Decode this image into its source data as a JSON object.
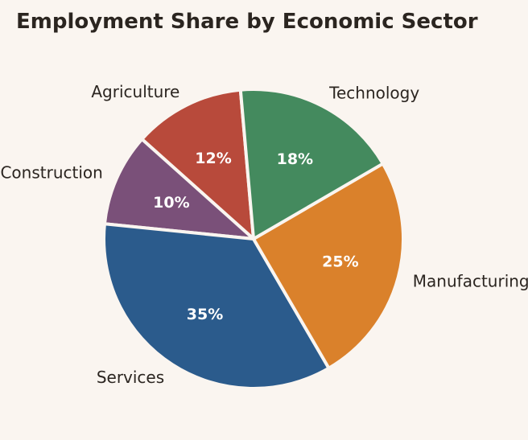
{
  "chart_data": {
    "type": "pie",
    "title": "Employment Share by Economic Sector",
    "start_angle_deg": 95,
    "direction": "counterclockwise",
    "slices": [
      {
        "label": "Agriculture",
        "value": 12,
        "pct_label": "12%",
        "color": "#b84a3b"
      },
      {
        "label": "Construction",
        "value": 10,
        "pct_label": "10%",
        "color": "#7a5079"
      },
      {
        "label": "Services",
        "value": 35,
        "pct_label": "35%",
        "color": "#2b5b8c"
      },
      {
        "label": "Manufacturing",
        "value": 25,
        "pct_label": "25%",
        "color": "#da812b"
      },
      {
        "label": "Technology",
        "value": 18,
        "pct_label": "18%",
        "color": "#448a5e"
      }
    ],
    "edge_color": "#faf5f0",
    "legend": "none"
  }
}
